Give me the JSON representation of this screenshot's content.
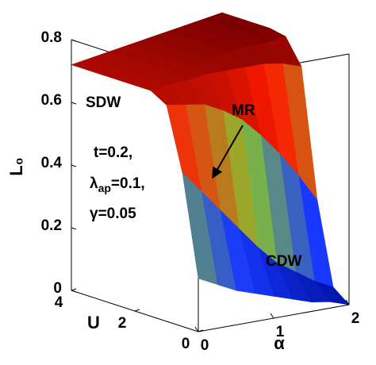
{
  "chart_data": {
    "type": "surface",
    "xlabel": "α",
    "ylabel": "U",
    "zlabel": "L₀",
    "x": [
      0,
      0.25,
      0.5,
      0.75,
      1,
      1.25,
      1.5,
      1.75,
      2
    ],
    "y": [
      0,
      0.5,
      1,
      1.5,
      2,
      2.5,
      3,
      3.5,
      4
    ],
    "z": [
      [
        0.17,
        0.49,
        0.69,
        0.72,
        0.72,
        0.72,
        0.72,
        0.72,
        0.72
      ],
      [
        0.14,
        0.42,
        0.68,
        0.73,
        0.73,
        0.73,
        0.73,
        0.73,
        0.73
      ],
      [
        0.11,
        0.35,
        0.67,
        0.73,
        0.74,
        0.74,
        0.74,
        0.74,
        0.74
      ],
      [
        0.09,
        0.28,
        0.64,
        0.74,
        0.75,
        0.75,
        0.75,
        0.75,
        0.75
      ],
      [
        0.07,
        0.21,
        0.6,
        0.74,
        0.76,
        0.76,
        0.76,
        0.76,
        0.76
      ],
      [
        0.05,
        0.15,
        0.54,
        0.74,
        0.77,
        0.77,
        0.77,
        0.77,
        0.77
      ],
      [
        0.03,
        0.11,
        0.47,
        0.74,
        0.78,
        0.78,
        0.78,
        0.78,
        0.78
      ],
      [
        0.02,
        0.07,
        0.39,
        0.73,
        0.78,
        0.79,
        0.79,
        0.79,
        0.79
      ],
      [
        0,
        0.04,
        0.3,
        0.71,
        0.79,
        0.8,
        0.8,
        0.8,
        0.8
      ]
    ],
    "xlim": [
      0,
      2
    ],
    "xticks": [
      0,
      1,
      2
    ],
    "ylim": [
      0,
      4
    ],
    "yticks": [
      0,
      2,
      4
    ],
    "zlim": [
      0,
      0.8
    ],
    "zticks": [
      0,
      0.2,
      0.4,
      0.6,
      0.8
    ],
    "colormap": [
      "#0010a0",
      "#1838ff",
      "#86c232",
      "#ff1a00",
      "#7a0000"
    ],
    "annotations": {
      "sdw": "SDW",
      "mr": "MR",
      "cdw": "CDW",
      "t": "t=0.2,",
      "lambda": {
        "symbol": "λ",
        "sub": "ap",
        "rest": "=0.1,"
      },
      "gamma": "γ=0.05"
    }
  }
}
